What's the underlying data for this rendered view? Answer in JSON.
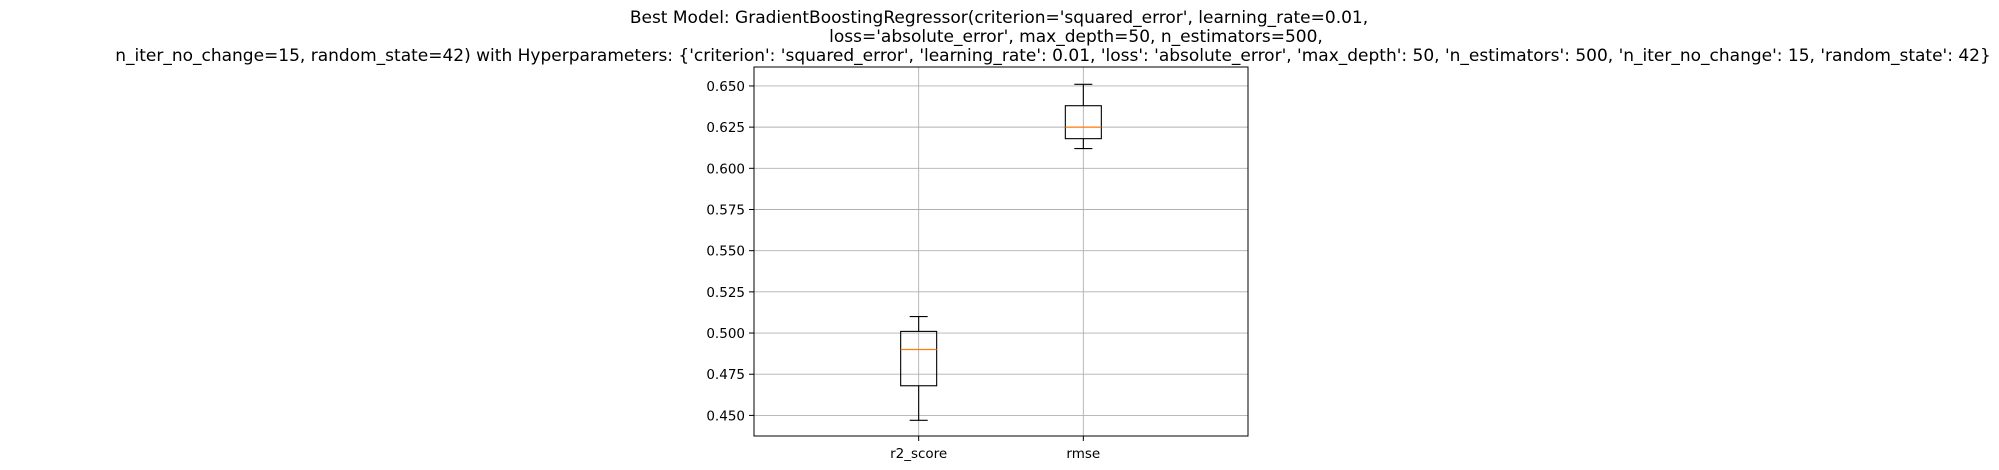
{
  "chart_data": {
    "type": "box",
    "title_lines": [
      "Best Model: GradientBoostingRegressor(criterion='squared_error', learning_rate=0.01,",
      "loss='absolute_error', max_depth=50, n_estimators=500,",
      "n_iter_no_change=15, random_state=42) with Hyperparameters: {'criterion': 'squared_error', 'learning_rate': 0.01, 'loss': 'absolute_error', 'max_depth': 50, 'n_estimators': 500, 'n_iter_no_change': 15, 'random_state': 42}"
    ],
    "xlabel": "",
    "ylabel": "",
    "categories": [
      "r2_score",
      "rmse"
    ],
    "boxes": [
      {
        "category": "r2_score",
        "whisker_low": 0.447,
        "q1": 0.468,
        "median": 0.49,
        "q3": 0.501,
        "whisker_high": 0.51
      },
      {
        "category": "rmse",
        "whisker_low": 0.612,
        "q1": 0.618,
        "median": 0.625,
        "q3": 0.638,
        "whisker_high": 0.651
      }
    ],
    "yticks": [
      "0.450",
      "0.475",
      "0.500",
      "0.525",
      "0.550",
      "0.575",
      "0.600",
      "0.625",
      "0.650"
    ],
    "ylim": [
      0.4375,
      0.6615
    ],
    "grid": true,
    "colors": {
      "box": "#000000",
      "median": "#ff7f0e",
      "grid": "#b0b0b0"
    }
  }
}
